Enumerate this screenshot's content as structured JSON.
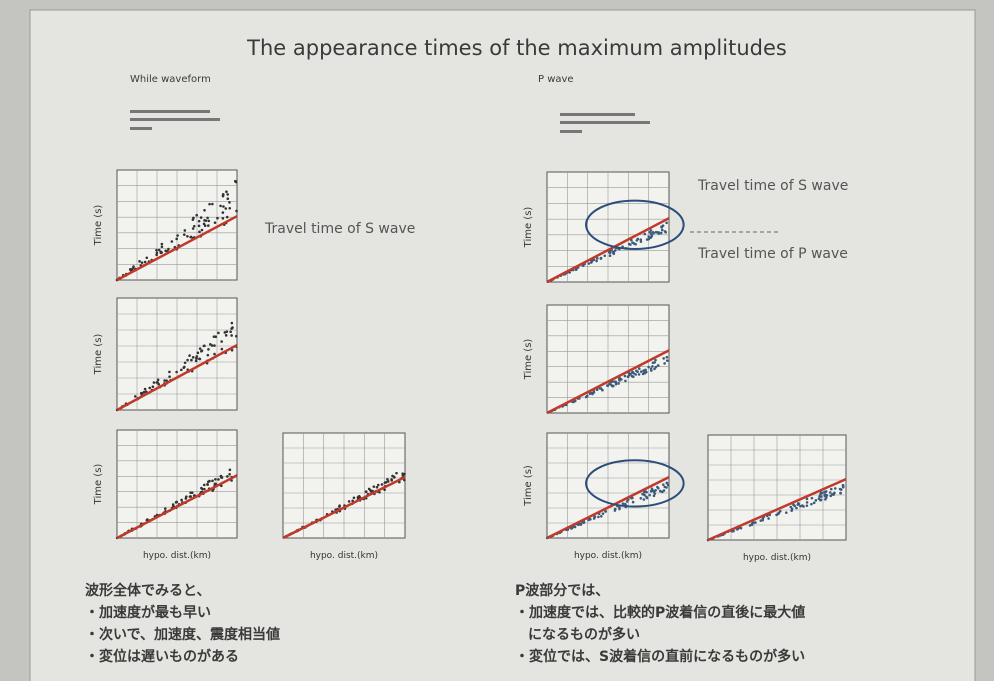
{
  "title": "The appearance times of the maximum amplitudes",
  "left": {
    "heading": "While waveform",
    "note": "Travel time of S wave",
    "comments": [
      "波形全体でみると、",
      "・加速度が最も早い",
      "・次いで、加速度、震度相当値",
      "・変位は遅いものがある"
    ]
  },
  "right": {
    "heading": "P wave",
    "note_s": "Travel time of S wave",
    "note_p": "Travel time of P wave",
    "comments": [
      "P波部分では、",
      "・加速度では、比較的P波着信の直後に最大値",
      "になるものが多い",
      "・変位では、S波着信の直前になるものが多い"
    ]
  },
  "axis_labels": {
    "y": "Time (s)",
    "x": "hypo. dist.(km)"
  }
}
